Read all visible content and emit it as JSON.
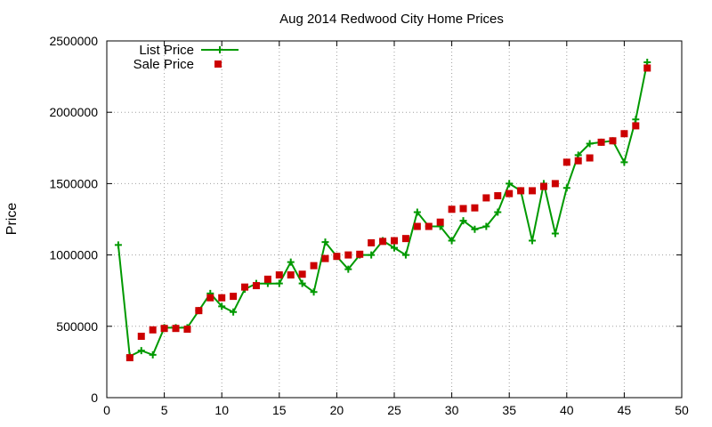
{
  "chart_data": {
    "type": "line",
    "title": "Aug 2014 Redwood City Home Prices",
    "xlabel": "",
    "ylabel": "Price",
    "xlim": [
      0,
      50
    ],
    "ylim": [
      0,
      2500000
    ],
    "xticks": [
      0,
      5,
      10,
      15,
      20,
      25,
      30,
      35,
      40,
      45,
      50
    ],
    "yticks": [
      0,
      500000,
      1000000,
      1500000,
      2000000,
      2500000
    ],
    "grid": true,
    "legend_position": "top-left",
    "series": [
      {
        "name": "List Price",
        "style": "line-plus",
        "color": "#009900",
        "x": [
          1,
          2,
          3,
          4,
          5,
          6,
          7,
          8,
          9,
          10,
          11,
          12,
          13,
          14,
          15,
          16,
          17,
          18,
          19,
          20,
          21,
          22,
          23,
          24,
          25,
          26,
          27,
          28,
          29,
          30,
          31,
          32,
          33,
          34,
          35,
          36,
          37,
          38,
          39,
          40,
          41,
          42,
          43,
          44,
          45,
          46,
          47
        ],
        "values": [
          1070000,
          290000,
          330000,
          300000,
          490000,
          490000,
          490000,
          610000,
          730000,
          640000,
          600000,
          760000,
          800000,
          800000,
          800000,
          950000,
          800000,
          740000,
          1090000,
          990000,
          900000,
          1000000,
          1000000,
          1100000,
          1050000,
          1000000,
          1300000,
          1200000,
          1200000,
          1100000,
          1240000,
          1180000,
          1200000,
          1300000,
          1500000,
          1450000,
          1100000,
          1500000,
          1150000,
          1470000,
          1700000,
          1780000,
          1790000,
          1800000,
          1650000,
          1950000,
          2350000
        ]
      },
      {
        "name": "Sale Price",
        "style": "square-points",
        "color": "#cc0000",
        "x": [
          2,
          3,
          4,
          5,
          6,
          7,
          8,
          9,
          10,
          11,
          12,
          13,
          14,
          15,
          16,
          17,
          18,
          19,
          20,
          21,
          22,
          23,
          24,
          25,
          26,
          27,
          28,
          29,
          30,
          31,
          32,
          33,
          34,
          35,
          36,
          37,
          38,
          39,
          40,
          41,
          42,
          43,
          44,
          45,
          46,
          47
        ],
        "values": [
          280000,
          430000,
          475000,
          485000,
          485000,
          480000,
          610000,
          700000,
          700000,
          710000,
          775000,
          785000,
          830000,
          860000,
          860000,
          865000,
          925000,
          975000,
          990000,
          1000000,
          1005000,
          1085000,
          1095000,
          1100000,
          1115000,
          1200000,
          1200000,
          1230000,
          1320000,
          1325000,
          1330000,
          1400000,
          1415000,
          1430000,
          1450000,
          1450000,
          1480000,
          1500000,
          1650000,
          1660000,
          1680000,
          1790000,
          1800000,
          1850000,
          1905000,
          2310000
        ]
      }
    ]
  }
}
